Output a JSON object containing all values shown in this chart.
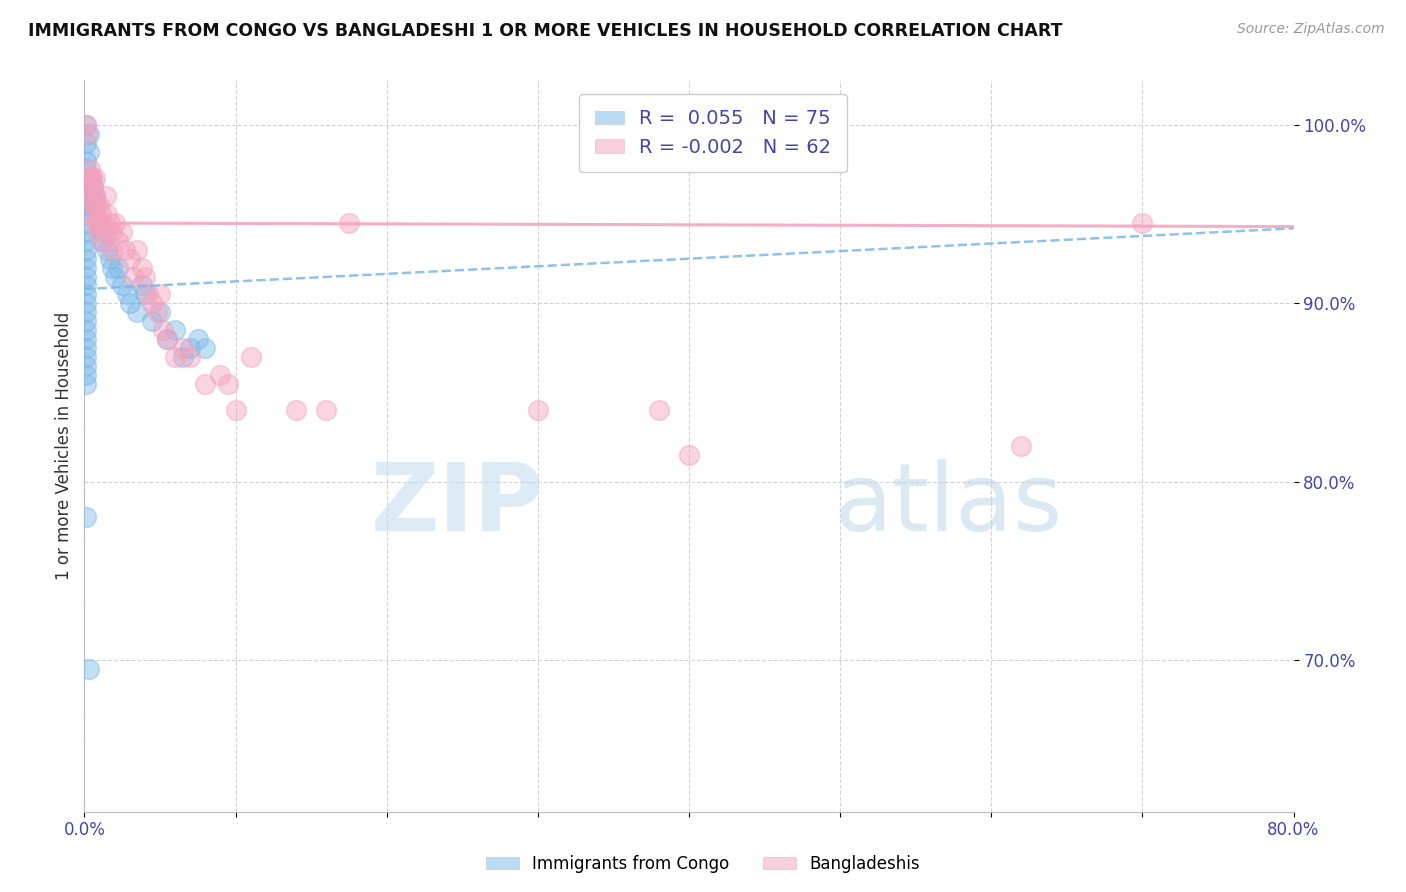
{
  "title": "IMMIGRANTS FROM CONGO VS BANGLADESHI 1 OR MORE VEHICLES IN HOUSEHOLD CORRELATION CHART",
  "source": "Source: ZipAtlas.com",
  "ylabel": "1 or more Vehicles in Household",
  "xlim": [
    0.0,
    0.8
  ],
  "ylim": [
    0.615,
    1.025
  ],
  "xtick_positions": [
    0.0,
    0.1,
    0.2,
    0.3,
    0.4,
    0.5,
    0.6,
    0.7,
    0.8
  ],
  "xticklabels": [
    "0.0%",
    "",
    "",
    "",
    "",
    "",
    "",
    "",
    "80.0%"
  ],
  "ytick_positions": [
    0.7,
    0.8,
    0.9,
    1.0
  ],
  "ytick_labels": [
    "70.0%",
    "80.0%",
    "90.0%",
    "100.0%"
  ],
  "grid_color": "#c8c8c8",
  "background_color": "#ffffff",
  "congo_color": "#7ab8e8",
  "bangladesh_color": "#f4a0bc",
  "watermark_color": "#daeef8",
  "legend_labels": [
    "Immigrants from Congo",
    "Bangladeshis"
  ],
  "congo_scatter": [
    [
      0.0008,
      1.0
    ],
    [
      0.0008,
      0.99
    ],
    [
      0.0008,
      0.98
    ],
    [
      0.0008,
      0.975
    ],
    [
      0.0008,
      0.965
    ],
    [
      0.0008,
      0.96
    ],
    [
      0.0008,
      0.955
    ],
    [
      0.0008,
      0.95
    ],
    [
      0.0008,
      0.945
    ],
    [
      0.0008,
      0.94
    ],
    [
      0.0008,
      0.935
    ],
    [
      0.0008,
      0.93
    ],
    [
      0.0008,
      0.925
    ],
    [
      0.0008,
      0.92
    ],
    [
      0.0008,
      0.915
    ],
    [
      0.0008,
      0.91
    ],
    [
      0.0008,
      0.905
    ],
    [
      0.0008,
      0.9
    ],
    [
      0.0008,
      0.895
    ],
    [
      0.0008,
      0.89
    ],
    [
      0.0008,
      0.885
    ],
    [
      0.0008,
      0.88
    ],
    [
      0.0008,
      0.875
    ],
    [
      0.0008,
      0.87
    ],
    [
      0.0008,
      0.865
    ],
    [
      0.0008,
      0.86
    ],
    [
      0.0008,
      0.855
    ],
    [
      0.0008,
      0.78
    ],
    [
      0.003,
      0.995
    ],
    [
      0.003,
      0.985
    ],
    [
      0.005,
      0.97
    ],
    [
      0.006,
      0.965
    ],
    [
      0.006,
      0.955
    ],
    [
      0.007,
      0.96
    ],
    [
      0.008,
      0.955
    ],
    [
      0.01,
      0.945
    ],
    [
      0.012,
      0.94
    ],
    [
      0.012,
      0.935
    ],
    [
      0.015,
      0.93
    ],
    [
      0.017,
      0.925
    ],
    [
      0.018,
      0.92
    ],
    [
      0.02,
      0.915
    ],
    [
      0.022,
      0.92
    ],
    [
      0.025,
      0.91
    ],
    [
      0.028,
      0.905
    ],
    [
      0.03,
      0.9
    ],
    [
      0.035,
      0.895
    ],
    [
      0.038,
      0.91
    ],
    [
      0.04,
      0.905
    ],
    [
      0.045,
      0.89
    ],
    [
      0.05,
      0.895
    ],
    [
      0.055,
      0.88
    ],
    [
      0.06,
      0.885
    ],
    [
      0.065,
      0.87
    ],
    [
      0.07,
      0.875
    ],
    [
      0.075,
      0.88
    ],
    [
      0.08,
      0.875
    ],
    [
      0.003,
      0.695
    ]
  ],
  "bangladesh_scatter": [
    [
      0.001,
      1.0
    ],
    [
      0.002,
      0.995
    ],
    [
      0.003,
      0.97
    ],
    [
      0.003,
      0.965
    ],
    [
      0.004,
      0.975
    ],
    [
      0.004,
      0.97
    ],
    [
      0.005,
      0.97
    ],
    [
      0.005,
      0.96
    ],
    [
      0.006,
      0.965
    ],
    [
      0.006,
      0.955
    ],
    [
      0.007,
      0.97
    ],
    [
      0.007,
      0.96
    ],
    [
      0.007,
      0.95
    ],
    [
      0.008,
      0.955
    ],
    [
      0.008,
      0.945
    ],
    [
      0.009,
      0.94
    ],
    [
      0.01,
      0.955
    ],
    [
      0.01,
      0.945
    ],
    [
      0.011,
      0.95
    ],
    [
      0.012,
      0.945
    ],
    [
      0.012,
      0.935
    ],
    [
      0.014,
      0.96
    ],
    [
      0.015,
      0.95
    ],
    [
      0.015,
      0.94
    ],
    [
      0.017,
      0.945
    ],
    [
      0.018,
      0.94
    ],
    [
      0.018,
      0.93
    ],
    [
      0.02,
      0.945
    ],
    [
      0.022,
      0.935
    ],
    [
      0.025,
      0.94
    ],
    [
      0.027,
      0.93
    ],
    [
      0.03,
      0.925
    ],
    [
      0.032,
      0.915
    ],
    [
      0.035,
      0.93
    ],
    [
      0.038,
      0.92
    ],
    [
      0.04,
      0.915
    ],
    [
      0.042,
      0.905
    ],
    [
      0.045,
      0.9
    ],
    [
      0.048,
      0.895
    ],
    [
      0.05,
      0.905
    ],
    [
      0.052,
      0.885
    ],
    [
      0.055,
      0.88
    ],
    [
      0.06,
      0.87
    ],
    [
      0.065,
      0.875
    ],
    [
      0.07,
      0.87
    ],
    [
      0.08,
      0.855
    ],
    [
      0.09,
      0.86
    ],
    [
      0.095,
      0.855
    ],
    [
      0.1,
      0.84
    ],
    [
      0.11,
      0.87
    ],
    [
      0.14,
      0.84
    ],
    [
      0.16,
      0.84
    ],
    [
      0.175,
      0.945
    ],
    [
      0.3,
      0.84
    ],
    [
      0.38,
      0.84
    ],
    [
      0.4,
      0.815
    ],
    [
      0.62,
      0.82
    ],
    [
      0.7,
      0.945
    ]
  ],
  "congo_line": {
    "x0": 0.0,
    "y0": 0.908,
    "x1": 0.8,
    "y1": 0.942
  },
  "bang_line": {
    "x0": 0.0,
    "y0": 0.945,
    "x1": 0.8,
    "y1": 0.943
  }
}
